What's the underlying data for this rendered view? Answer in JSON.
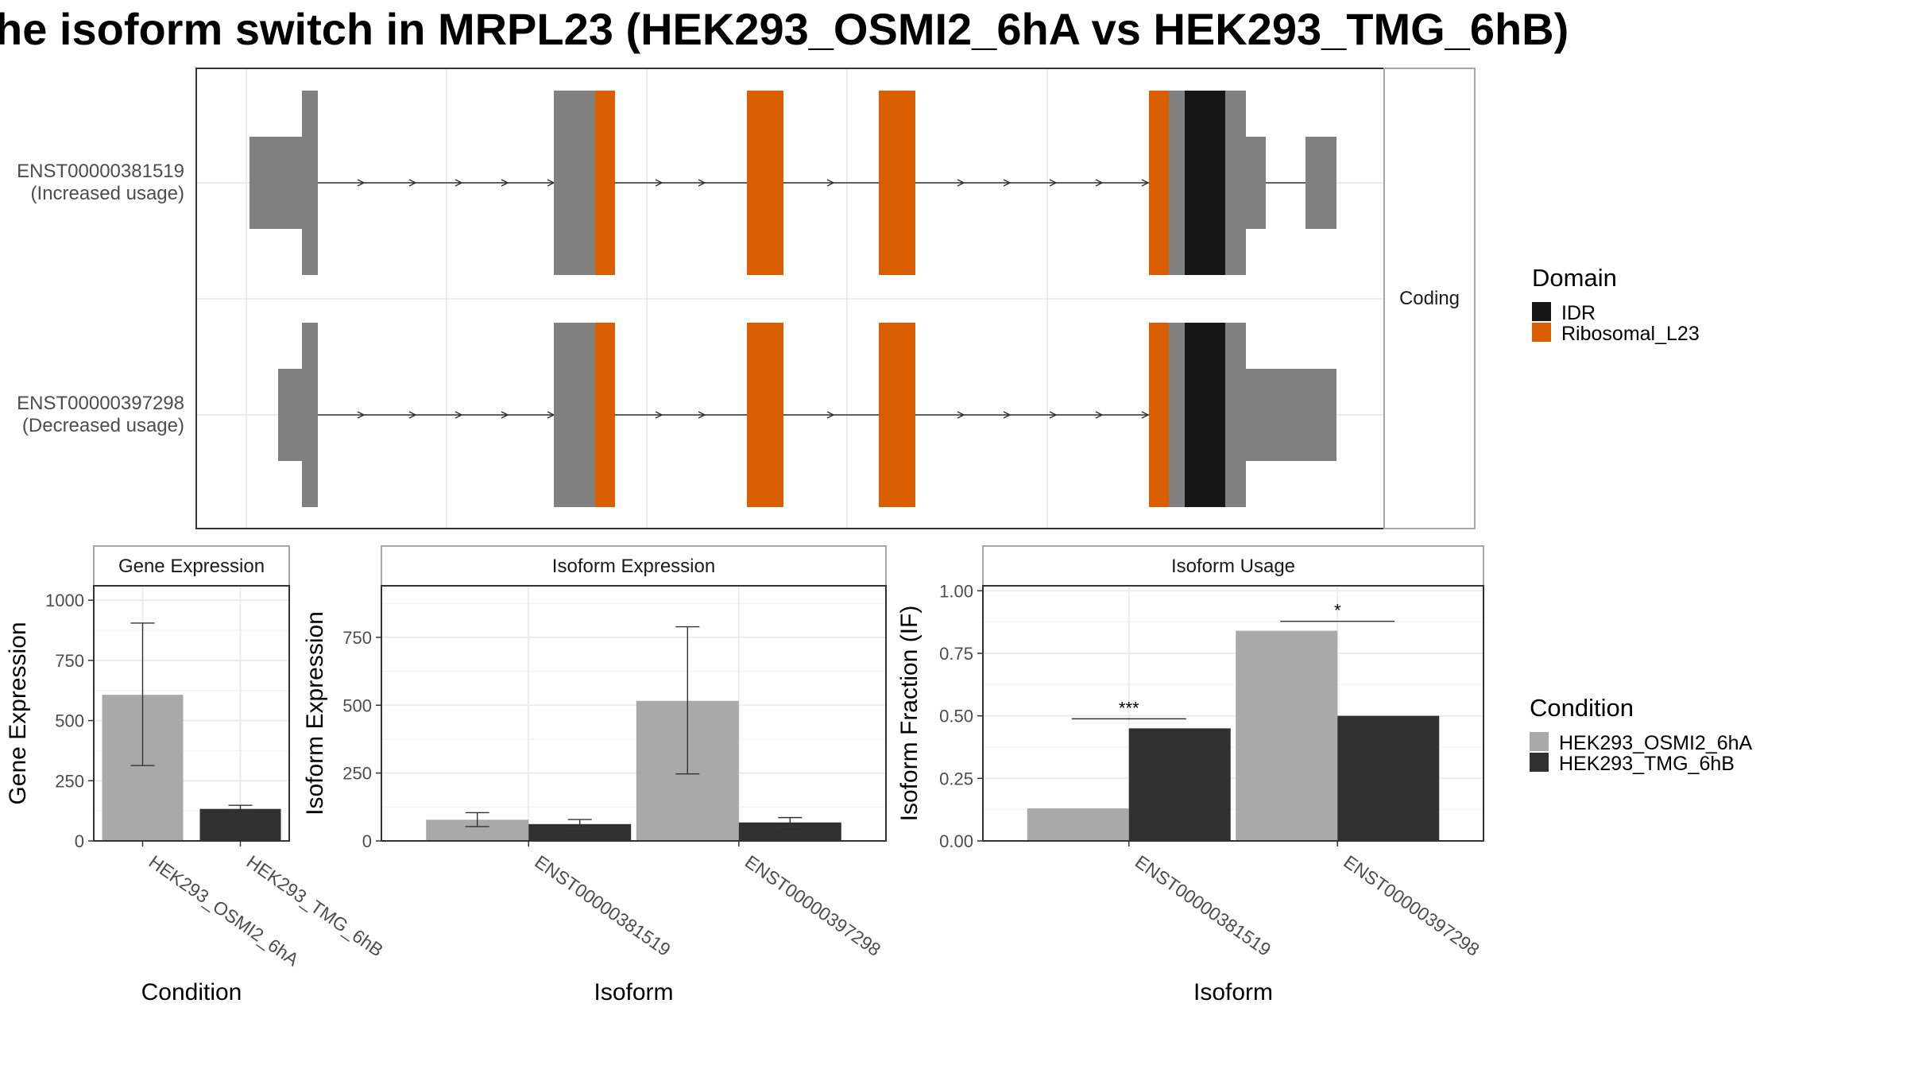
{
  "title": "he isoform switch in MRPL23 (HEK293_OSMI2_6hA vs HEK293_TMG_6hB)",
  "colors": {
    "IDR": "#161616",
    "Ribosomal_L23": "#d95f02",
    "exon": "#808080",
    "HEK293_OSMI2_6hA": "#a9a9a9",
    "HEK293_TMG_6hB": "#303030",
    "grid": "#ebebeb",
    "panel_border": "#333333",
    "strip_border": "#a6a6a6"
  },
  "chart_data": [
    {
      "type": "gene-structure",
      "strip_label": "Coding",
      "isoforms": [
        {
          "id": "ENST00000381519",
          "label": "ENST00000381519",
          "usage": "(Increased usage)"
        },
        {
          "id": "ENST00000397298",
          "label": "ENST00000397298",
          "usage": "(Decreased usage)"
        }
      ],
      "legend": {
        "title": "Domain",
        "entries": [
          "IDR",
          "Ribosomal_L23"
        ]
      }
    },
    {
      "type": "bar",
      "title": "Gene Expression",
      "xlabel": "Condition",
      "ylabel": "Gene Expression",
      "categories": [
        "HEK293_OSMI2_6hA",
        "HEK293_TMG_6hB"
      ],
      "values": [
        607,
        133
      ],
      "error_low": [
        313,
        118
      ],
      "error_high": [
        905,
        148
      ],
      "ylim": [
        0,
        1060
      ],
      "yticks": [
        0,
        250,
        500,
        750,
        1000
      ]
    },
    {
      "type": "bar",
      "title": "Isoform Expression",
      "xlabel": "Isoform",
      "ylabel": "Isoform Expression",
      "categories": [
        "ENST00000381519",
        "ENST00000397298"
      ],
      "series": [
        {
          "name": "HEK293_OSMI2_6hA",
          "values": [
            78,
            516
          ],
          "error_low": [
            53,
            247
          ],
          "error_high": [
            104,
            789
          ]
        },
        {
          "name": "HEK293_TMG_6hB",
          "values": [
            62,
            68
          ],
          "error_low": [
            46,
            52
          ],
          "error_high": [
            79,
            86
          ]
        }
      ],
      "ylim": [
        0,
        940
      ],
      "yticks": [
        0,
        250,
        500,
        750
      ]
    },
    {
      "type": "bar",
      "title": "Isoform Usage",
      "xlabel": "Isoform",
      "ylabel": "Isoform Fraction (IF)",
      "categories": [
        "ENST00000381519",
        "ENST00000397298"
      ],
      "series": [
        {
          "name": "HEK293_OSMI2_6hA",
          "values": [
            0.13,
            0.84
          ]
        },
        {
          "name": "HEK293_TMG_6hB",
          "values": [
            0.45,
            0.5
          ]
        }
      ],
      "significance": [
        "***",
        "*"
      ],
      "ylim": [
        0,
        1.02
      ],
      "yticks": [
        "0.00",
        "0.25",
        "0.50",
        "0.75",
        "1.00"
      ],
      "legend": {
        "title": "Condition",
        "entries": [
          "HEK293_OSMI2_6hA",
          "HEK293_TMG_6hB"
        ]
      }
    }
  ]
}
